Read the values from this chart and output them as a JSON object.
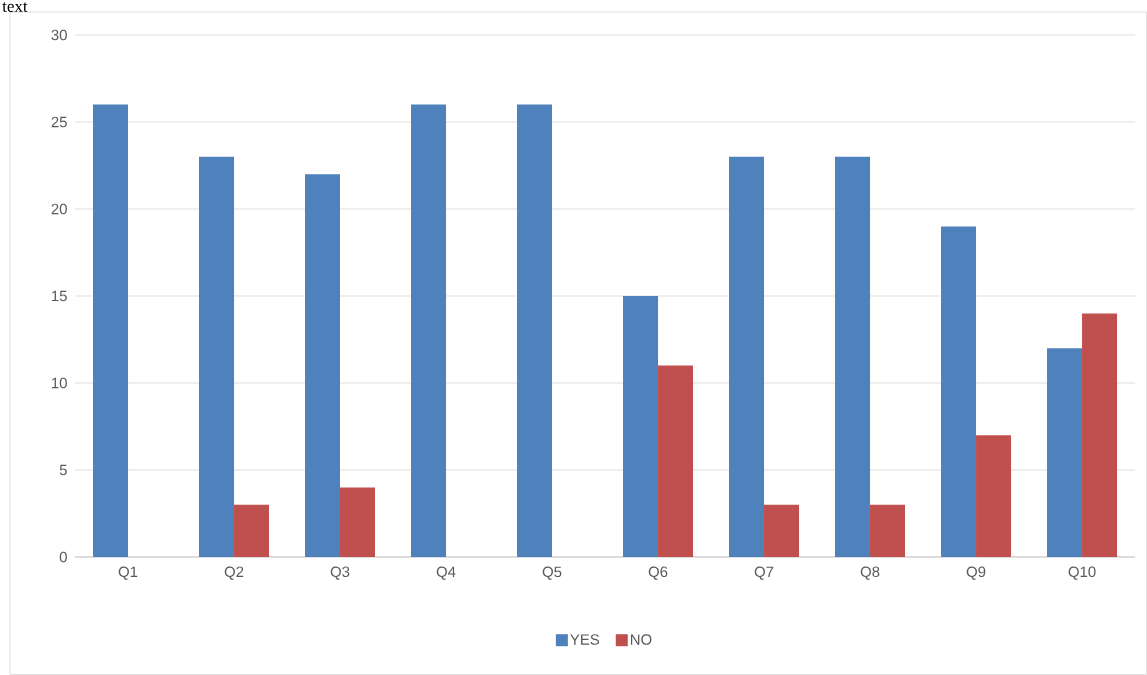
{
  "chart_data": {
    "type": "bar",
    "annotations": [
      "text"
    ],
    "categories": [
      "Q1",
      "Q2",
      "Q3",
      "Q4",
      "Q5",
      "Q6",
      "Q7",
      "Q8",
      "Q9",
      "Q10"
    ],
    "series": [
      {
        "name": "YES",
        "color": "#4f81bd",
        "values": [
          26,
          23,
          22,
          26,
          26,
          15,
          23,
          23,
          19,
          12
        ]
      },
      {
        "name": "NO",
        "color": "#c0504d",
        "values": [
          0,
          3,
          4,
          0,
          0,
          11,
          3,
          3,
          7,
          14
        ]
      }
    ],
    "ylim": [
      0,
      30
    ],
    "yticks": [
      0,
      5,
      10,
      15,
      20,
      25,
      30
    ],
    "grid": "y",
    "legend": "bottom"
  }
}
